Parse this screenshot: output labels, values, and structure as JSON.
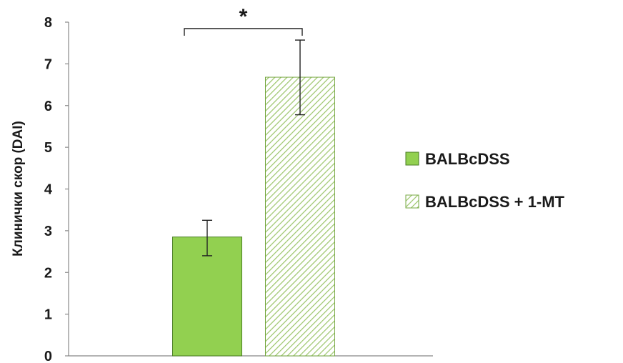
{
  "chart_data": {
    "type": "bar",
    "ylabel": "Клинички скор (DAI)",
    "xlabel": "",
    "ylim": [
      0,
      8
    ],
    "yticks": [
      0,
      1,
      2,
      3,
      4,
      5,
      6,
      7,
      8
    ],
    "grid": false,
    "legend_position": "right",
    "series": [
      {
        "name": "BALBcDSS",
        "value": 2.85,
        "error_low": 2.4,
        "error_high": 3.25,
        "fill": "solid",
        "color": "#92d050",
        "edge_color": "#4a7d24"
      },
      {
        "name": "BALBcDSS + 1-MT",
        "value": 6.68,
        "error_low": 5.78,
        "error_high": 7.57,
        "fill": "diagonal-hatch",
        "color": "#c5e0a5",
        "edge_color": "#77a843"
      }
    ],
    "significance": {
      "label": "*",
      "between": [
        0,
        1
      ]
    }
  }
}
